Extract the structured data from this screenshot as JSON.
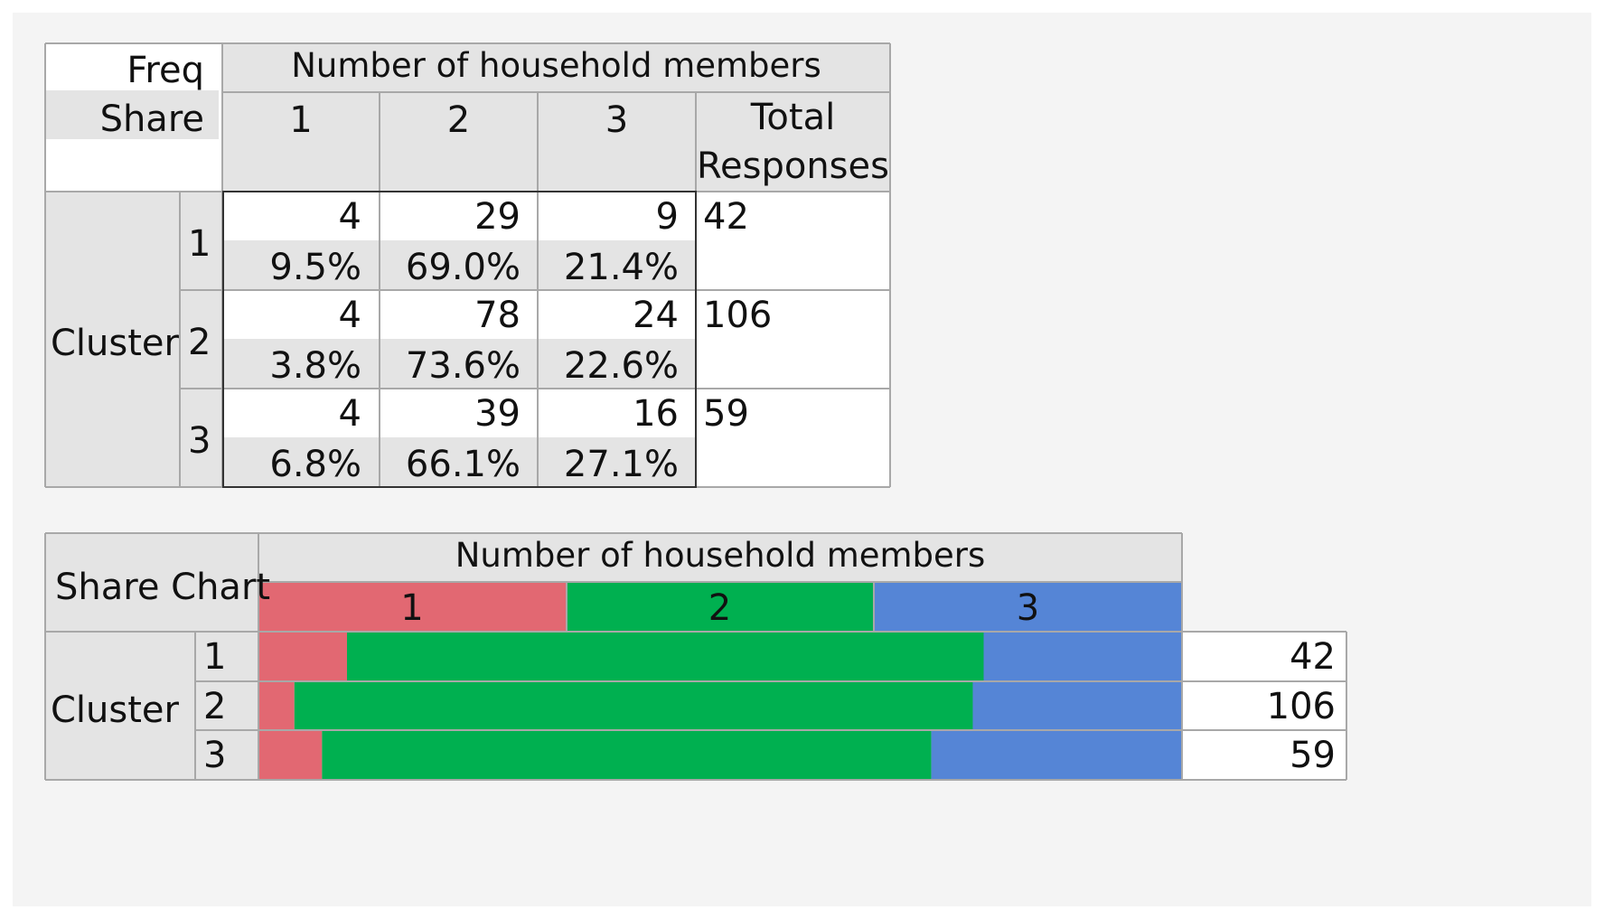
{
  "crosstab": {
    "legend": [
      "Freq",
      "Share"
    ],
    "column_header": "Number of household members",
    "row_header": "Cluster",
    "columns": [
      "1",
      "2",
      "3"
    ],
    "total_header_line1": "Total",
    "total_header_line2": "Responses",
    "rows": [
      {
        "label": "1",
        "freq": [
          "4",
          "29",
          "9"
        ],
        "share": [
          "9.5%",
          "69.0%",
          "21.4%"
        ],
        "total": "42"
      },
      {
        "label": "2",
        "freq": [
          "4",
          "78",
          "24"
        ],
        "share": [
          "3.8%",
          "73.6%",
          "22.6%"
        ],
        "total": "106"
      },
      {
        "label": "3",
        "freq": [
          "4",
          "39",
          "16"
        ],
        "share": [
          "6.8%",
          "66.1%",
          "27.1%"
        ],
        "total": "59"
      }
    ]
  },
  "share_chart": {
    "title": "Share Chart",
    "column_header": "Number of household members",
    "row_header": "Cluster"
  },
  "colors": {
    "1": "#e26872",
    "2": "#00b050",
    "3": "#5585d6"
  },
  "chart_data": {
    "type": "bar",
    "orientation": "horizontal",
    "stacked": true,
    "normalized": true,
    "title": "Share Chart",
    "xlabel": "Number of household members",
    "ylabel": "Cluster",
    "categories": [
      "1",
      "2",
      "3"
    ],
    "series": [
      {
        "name": "1",
        "values": [
          9.5,
          3.8,
          6.8
        ]
      },
      {
        "name": "2",
        "values": [
          69.0,
          73.6,
          66.1
        ]
      },
      {
        "name": "3",
        "values": [
          21.4,
          22.6,
          27.1
        ]
      }
    ],
    "totals": [
      42,
      106,
      59
    ],
    "xlim": [
      0,
      100
    ]
  }
}
